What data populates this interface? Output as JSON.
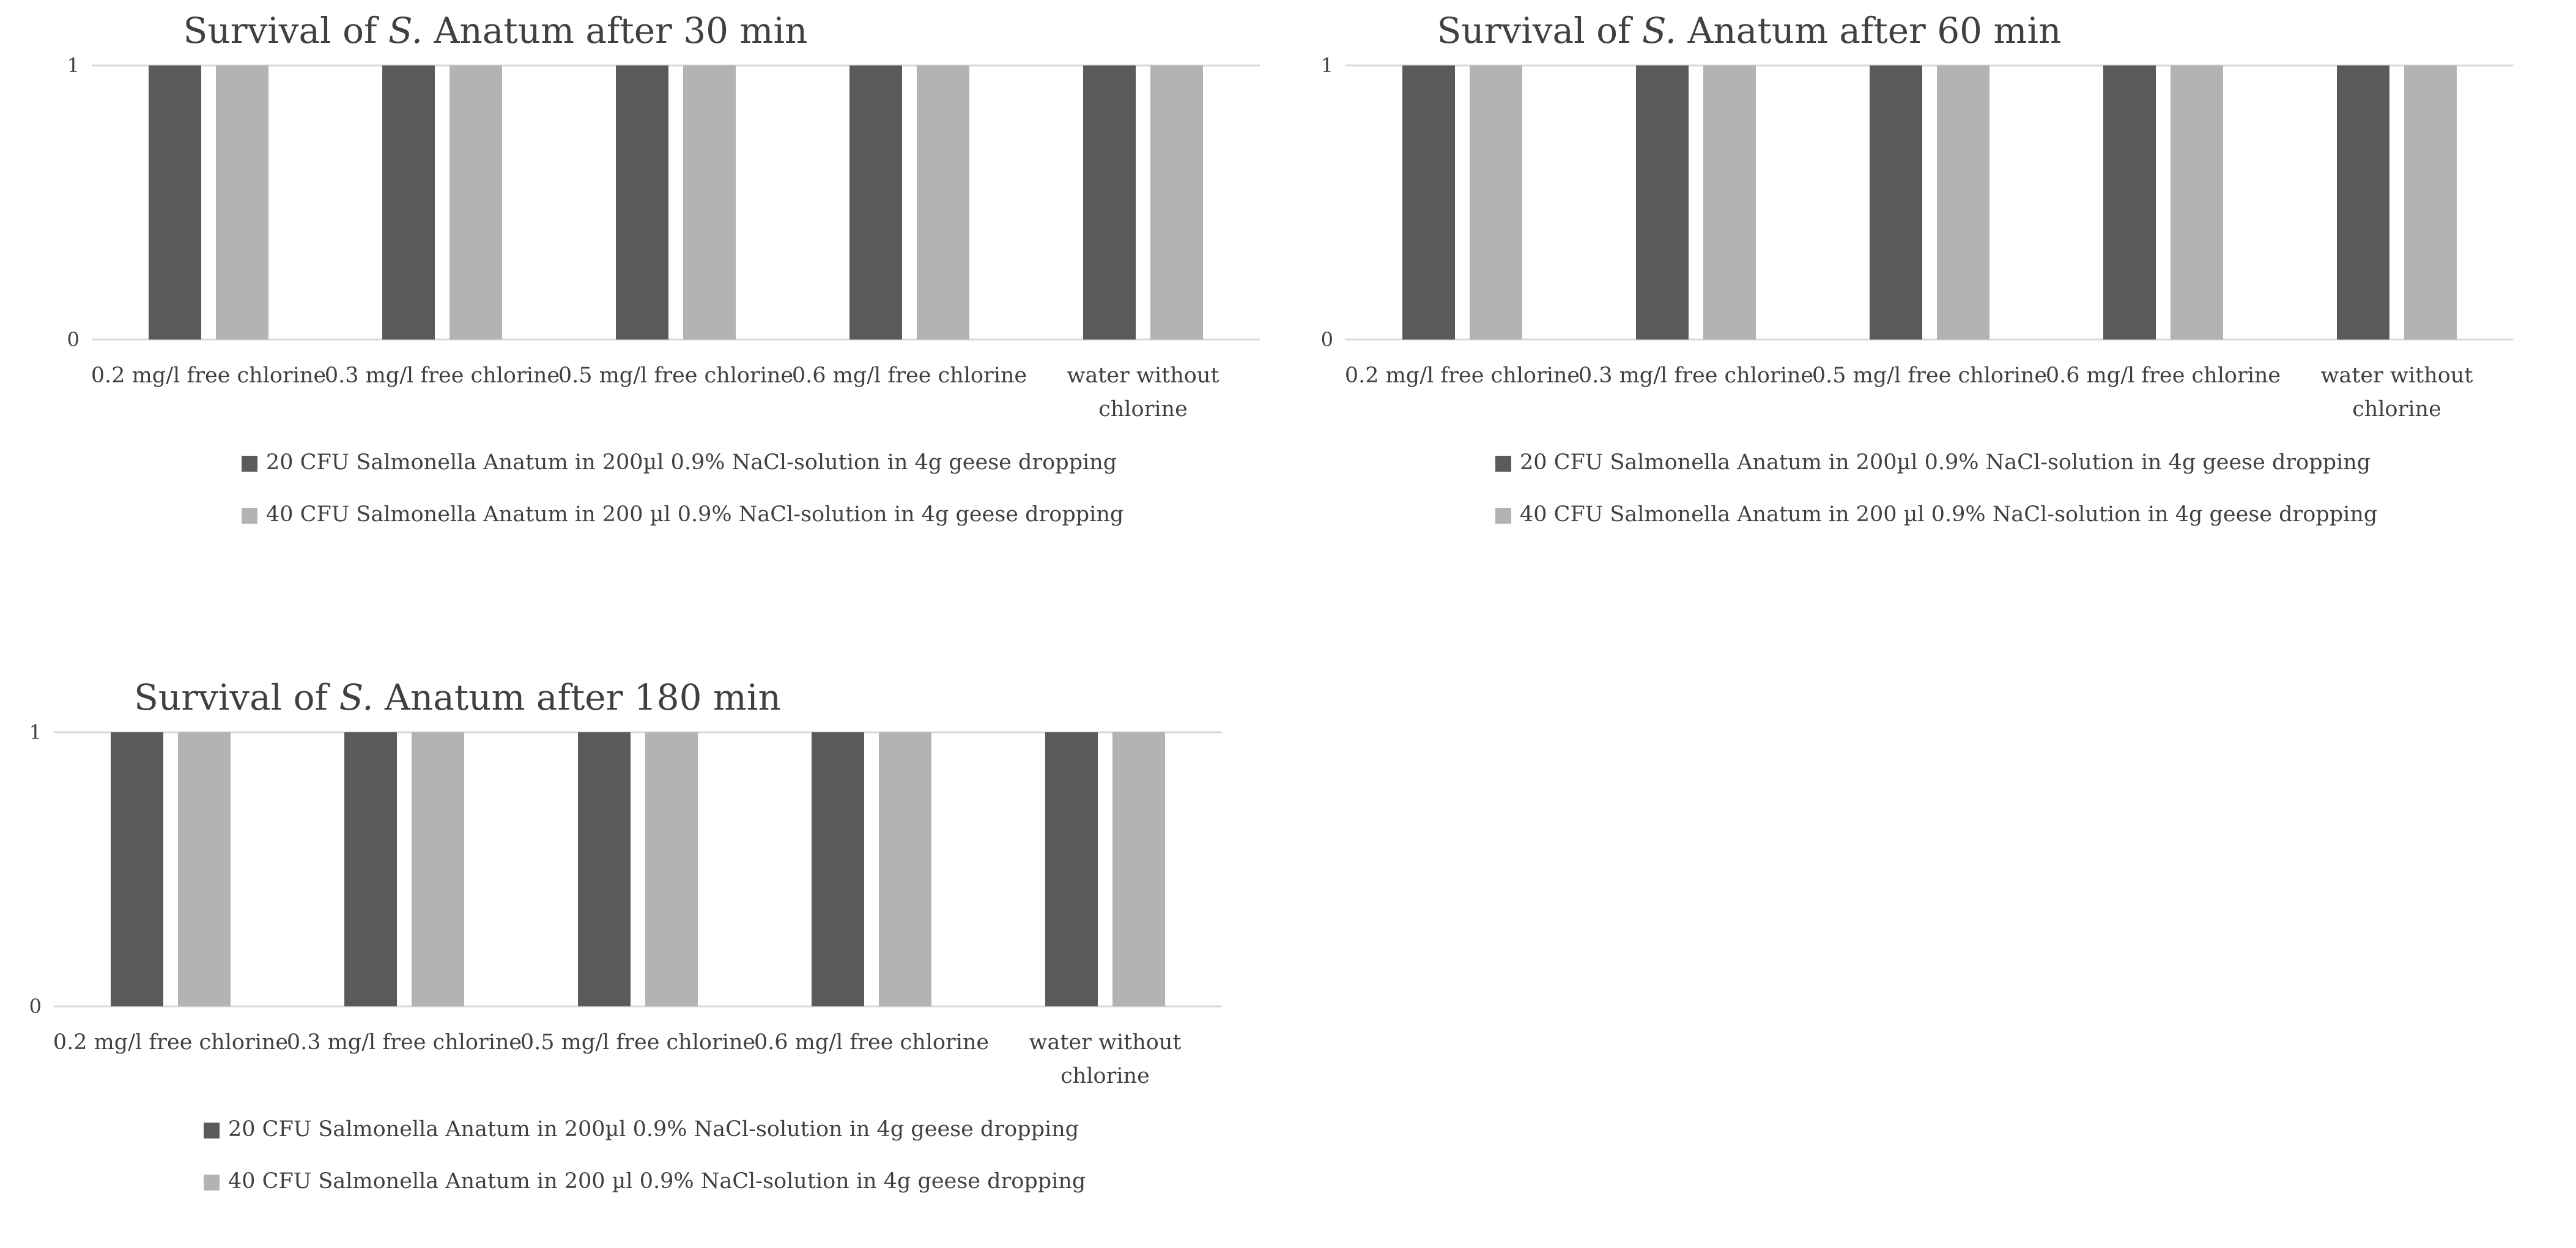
{
  "chart_data": [
    {
      "type": "bar",
      "title_prefix": "Survival of ",
      "title_italic": "S.",
      "title_suffix": " Anatum after 30 min",
      "categories": [
        [
          "0.2 mg/l free chlorine"
        ],
        [
          "0.3 mg/l free chlorine"
        ],
        [
          "0.5 mg/l free chlorine"
        ],
        [
          "0.6 mg/l free chlorine"
        ],
        [
          "water without",
          "chlorine"
        ]
      ],
      "series": [
        {
          "name": "20 CFU Salmonella Anatum in 200µl 0.9% NaCl-solution in 4g geese dropping",
          "values": [
            1,
            1,
            1,
            1,
            1
          ],
          "color": "#5a5a5a"
        },
        {
          "name": "40 CFU Salmonella Anatum in 200 µl 0.9% NaCl-solution in 4g geese dropping",
          "values": [
            1,
            1,
            1,
            1,
            1
          ],
          "color": "#b3b3b3"
        }
      ],
      "ylim": [
        0,
        1
      ],
      "yticks": [
        "0",
        "1"
      ],
      "xlabel": "",
      "ylabel": "",
      "legend": "bottom"
    },
    {
      "type": "bar",
      "title_prefix": "Survival of ",
      "title_italic": "S.",
      "title_suffix": " Anatum after 60 min",
      "categories": [
        [
          "0.2 mg/l free chlorine"
        ],
        [
          "0.3 mg/l free chlorine"
        ],
        [
          "0.5 mg/l free chlorine"
        ],
        [
          "0.6 mg/l free chlorine"
        ],
        [
          "water without",
          "chlorine"
        ]
      ],
      "series": [
        {
          "name": "20 CFU Salmonella Anatum in 200µl 0.9% NaCl-solution in 4g geese dropping",
          "values": [
            1,
            1,
            1,
            1,
            1
          ],
          "color": "#5a5a5a"
        },
        {
          "name": "40 CFU Salmonella Anatum in 200 µl 0.9% NaCl-solution in 4g geese dropping",
          "values": [
            1,
            1,
            1,
            1,
            1
          ],
          "color": "#b3b3b3"
        }
      ],
      "ylim": [
        0,
        1
      ],
      "yticks": [
        "0",
        "1"
      ],
      "xlabel": "",
      "ylabel": "",
      "legend": "bottom"
    },
    {
      "type": "bar",
      "title_prefix": "Survival of ",
      "title_italic": "S.",
      "title_suffix": " Anatum after 180 min",
      "categories": [
        [
          "0.2 mg/l free chlorine"
        ],
        [
          "0.3 mg/l free chlorine"
        ],
        [
          "0.5 mg/l free chlorine"
        ],
        [
          "0.6 mg/l free chlorine"
        ],
        [
          "water without",
          "chlorine"
        ]
      ],
      "series": [
        {
          "name": "20 CFU Salmonella Anatum in 200µl 0.9% NaCl-solution in 4g geese dropping",
          "values": [
            1,
            1,
            1,
            1,
            1
          ],
          "color": "#5a5a5a"
        },
        {
          "name": "40 CFU Salmonella Anatum in 200 µl 0.9% NaCl-solution in 4g geese dropping",
          "values": [
            1,
            1,
            1,
            1,
            1
          ],
          "color": "#b3b3b3"
        }
      ],
      "ylim": [
        0,
        1
      ],
      "yticks": [
        "0",
        "1"
      ],
      "xlabel": "",
      "ylabel": "",
      "legend": "bottom"
    }
  ]
}
